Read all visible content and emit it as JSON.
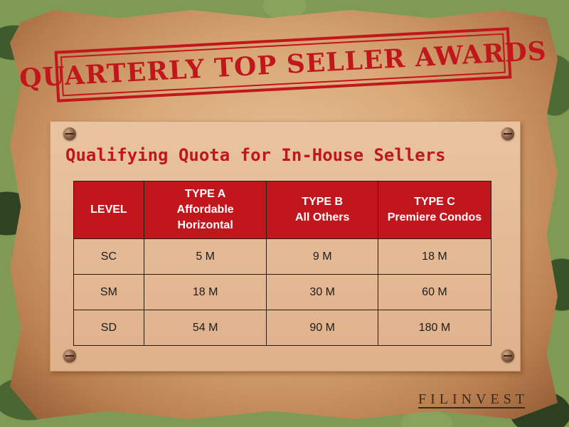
{
  "banner": {
    "title": "QUARTERLY TOP SELLER AWARDS"
  },
  "board": {
    "subtitle": "Qualifying Quota for In-House Sellers"
  },
  "table": {
    "headers": [
      {
        "line1": "LEVEL",
        "line2": "",
        "line3": ""
      },
      {
        "line1": "TYPE A",
        "line2": "Affordable",
        "line3": "Horizontal"
      },
      {
        "line1": "TYPE B",
        "line2": "All Others",
        "line3": ""
      },
      {
        "line1": "TYPE C",
        "line2": "Premiere Condos",
        "line3": ""
      }
    ],
    "rows": [
      [
        "SC",
        "5 M",
        "9 M",
        "18 M"
      ],
      [
        "SM",
        "18 M",
        "30 M",
        "60 M"
      ],
      [
        "SD",
        "54 M",
        "90 M",
        "180 M"
      ]
    ]
  },
  "logo": {
    "text": "FILINVEST"
  },
  "colors": {
    "accent": "#c0161c",
    "paper": "#d9a877",
    "board": "#e4ba95"
  }
}
